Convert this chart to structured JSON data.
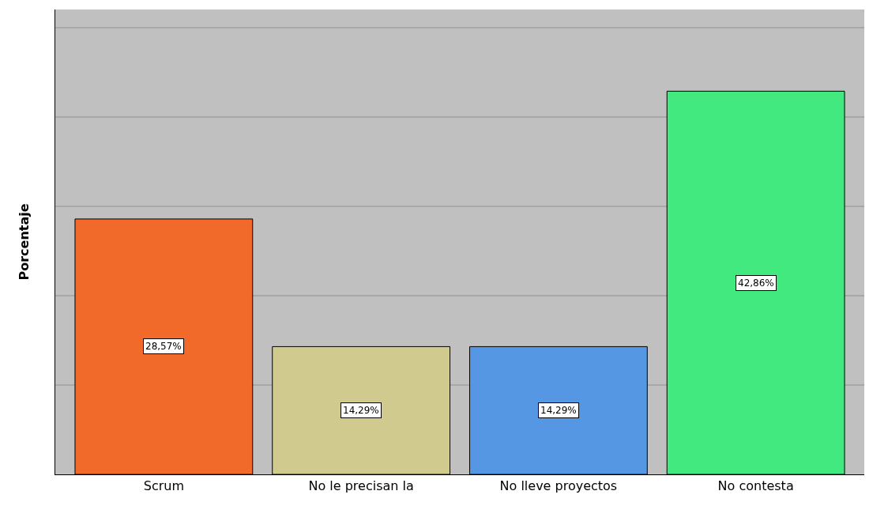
{
  "chart_data": {
    "type": "bar",
    "ylabel": "Porcentaje",
    "categories": [
      "Scrum",
      "No le precisan la",
      "No lleve proyectos",
      "No contesta"
    ],
    "values": [
      28.57,
      14.29,
      14.29,
      42.86
    ],
    "colors": [
      "#f26a2a",
      "#d0ca8f",
      "#5697e3",
      "#41e97e"
    ],
    "value_labels": [
      "28,57%",
      "14,29%",
      "14,29%",
      "42,86%"
    ],
    "ylim": [
      0,
      52
    ],
    "yticks": [
      {
        "value": 0,
        "label": null
      },
      {
        "value": 10,
        "label": null
      },
      {
        "value": 20,
        "label": null
      },
      {
        "value": 30,
        "label": null
      },
      {
        "value": 40,
        "label": null
      },
      {
        "value": 50,
        "label": null
      }
    ],
    "grid": "y",
    "tick_labels": "x"
  }
}
